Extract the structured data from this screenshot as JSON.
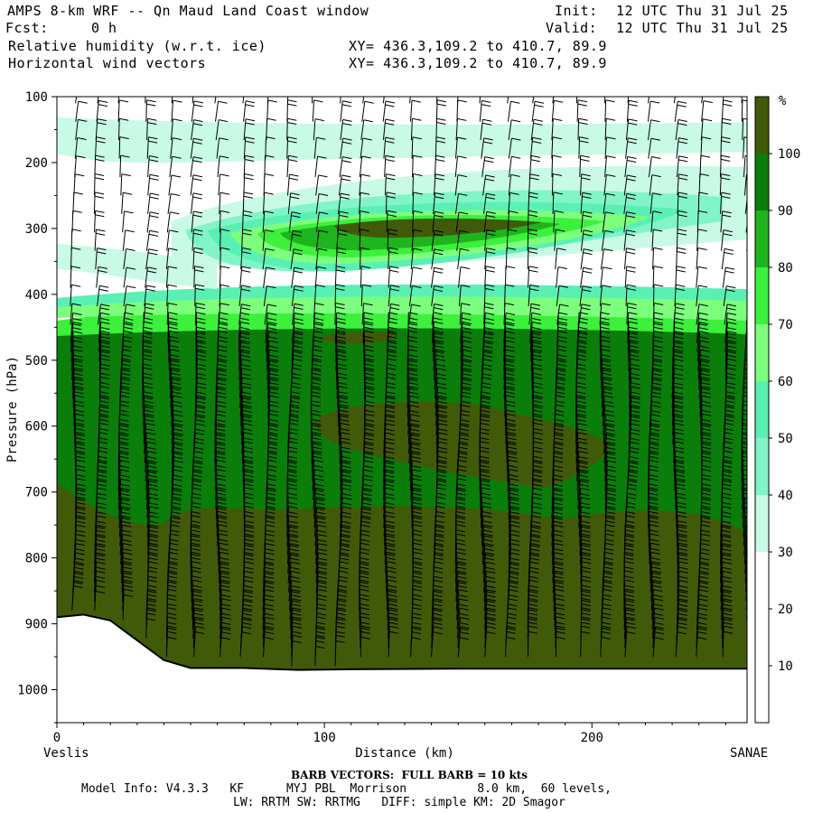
{
  "header": {
    "title_line": "AMPS 8-km WRF -- Qn Maud Land Coast window",
    "init_label": "Init:",
    "init_value": "12 UTC Thu 31 Jul 25",
    "fcst_label": "Fcst:",
    "fcst_value": "0 h",
    "valid_label": "Valid:",
    "valid_value": "12 UTC Thu 31 Jul 25",
    "field1": "Relative humidity (w.r.t. ice)",
    "field2": "Horizontal wind vectors",
    "xy1": "XY= 436.3,109.2 to 410.7, 89.9",
    "xy2": "XY= 436.3,109.2 to 410.7, 89.9"
  },
  "footer": {
    "barb_note": "BARB VECTORS:  FULL BARB = 10 kts",
    "model_info": "Model Info: V4.3.3   KF      MYJ PBL  Morrison          8.0 km,  60 levels,",
    "model_info2": "LW: RRTM SW: RRTMG   DIFF: simple KM: 2D Smagor"
  },
  "chart_data": {
    "type": "heatmap",
    "title": "",
    "xlabel": "Distance (km)",
    "ylabel": "Pressure (hPa)",
    "xlim": [
      0,
      258
    ],
    "ylim": [
      1050,
      100
    ],
    "x_ticks": [
      0,
      100,
      200
    ],
    "y_ticks": [
      100,
      200,
      300,
      400,
      500,
      600,
      700,
      800,
      900,
      1000
    ],
    "left_endpoint": "Veslis",
    "right_endpoint": "SANAE",
    "colorbar": {
      "unit": "%",
      "levels": [
        10,
        20,
        30,
        40,
        50,
        60,
        70,
        80,
        90,
        100
      ],
      "colors": [
        "#ffffff",
        "#ffffff",
        "#ffffff",
        "#c8fae6",
        "#82f5c8",
        "#5af0b4",
        "#7dff7d",
        "#3cf03c",
        "#1eb41e",
        "#0a7d0a",
        "#415a0a"
      ]
    },
    "terrain_surface_hpa": [
      [
        0,
        890
      ],
      [
        10,
        886
      ],
      [
        20,
        895
      ],
      [
        30,
        925
      ],
      [
        40,
        955
      ],
      [
        50,
        967
      ],
      [
        70,
        967
      ],
      [
        90,
        970
      ],
      [
        110,
        969
      ],
      [
        150,
        968
      ],
      [
        200,
        968
      ],
      [
        258,
        968
      ]
    ],
    "barb_columns_km": [
      6,
      15,
      24,
      33,
      42,
      51,
      60,
      69,
      78,
      87,
      96,
      105,
      114,
      123,
      132,
      141,
      150,
      159,
      168,
      177,
      186,
      195,
      204,
      213,
      222,
      231,
      240,
      249,
      257
    ],
    "barb_note": "FULL BARB = 10 kts"
  }
}
